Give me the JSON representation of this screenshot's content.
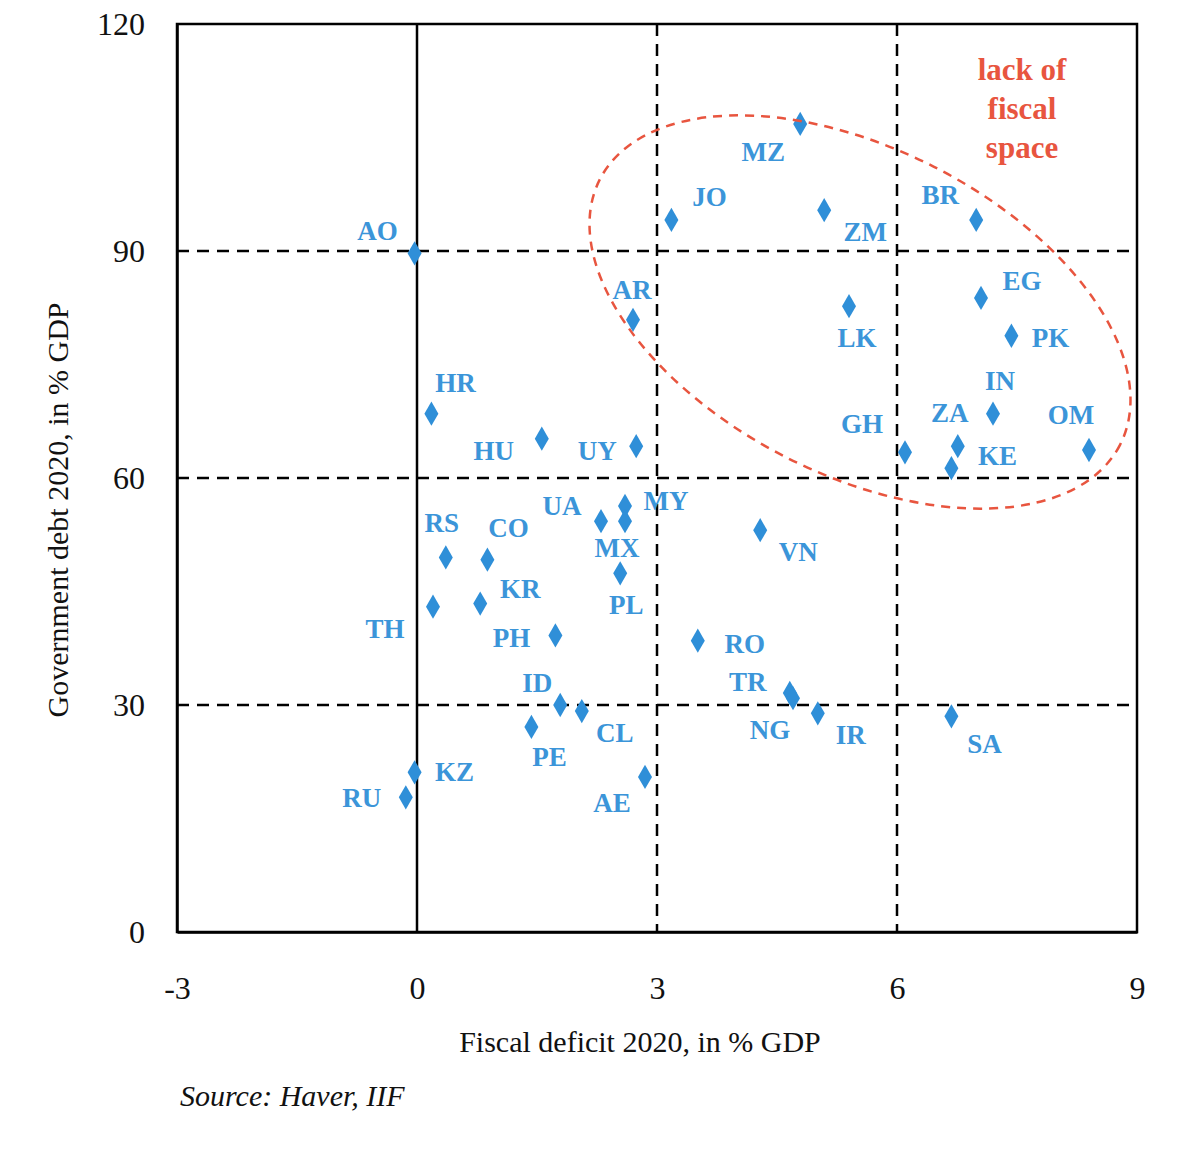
{
  "chart_data": {
    "type": "scatter",
    "x_label": "Fiscal deficit 2020, in % GDP",
    "y_label": "Government debt 2020, in % GDP",
    "source": "Source: Haver, IIF",
    "annotation": [
      "lack of",
      "fiscal",
      "space"
    ],
    "labels": [
      "AO",
      "MZ",
      "JO",
      "ZM",
      "BR",
      "AR",
      "EG",
      "LK",
      "PK",
      "HR",
      "HU",
      "UY",
      "GH",
      "IN",
      "ZA",
      "KE",
      "OM",
      "MY",
      "UA",
      "MX",
      "VN",
      "RS",
      "CO",
      "PL",
      "KR",
      "TH",
      "PH",
      "RO",
      "TR",
      "NG",
      "IR",
      "SA",
      "ID",
      "CL",
      "PE",
      "AE",
      "KZ",
      "RU"
    ],
    "x": [
      -0.03,
      4.79,
      3.18,
      5.09,
      6.99,
      2.7,
      7.05,
      5.4,
      7.43,
      0.18,
      1.56,
      2.74,
      6.1,
      7.2,
      6.76,
      6.68,
      8.4,
      2.6,
      2.3,
      2.6,
      4.29,
      0.36,
      0.88,
      2.54,
      0.79,
      0.2,
      1.73,
      3.51,
      4.66,
      4.7,
      5.01,
      6.68,
      1.79,
      2.06,
      1.43,
      2.85,
      -0.03,
      -0.14
    ],
    "values": [
      89.7,
      106.8,
      94.1,
      95.4,
      94.1,
      80.9,
      83.8,
      82.7,
      78.8,
      68.5,
      65.2,
      64.2,
      63.4,
      68.5,
      64.2,
      61.3,
      63.7,
      56.3,
      54.3,
      54.3,
      53.1,
      49.5,
      49.2,
      47.4,
      43.4,
      43.0,
      39.2,
      38.5,
      31.6,
      30.9,
      28.9,
      28.5,
      30.0,
      29.2,
      27.1,
      20.5,
      21.1,
      17.8
    ],
    "color": "#2f8fd8",
    "marker": "diamond",
    "xlim": [
      -3,
      9
    ],
    "xticks": [
      -3,
      0,
      3,
      6,
      9
    ],
    "ylim": [
      0,
      120
    ],
    "yticks": [
      0,
      30,
      60,
      90,
      120
    ],
    "grid": true
  }
}
